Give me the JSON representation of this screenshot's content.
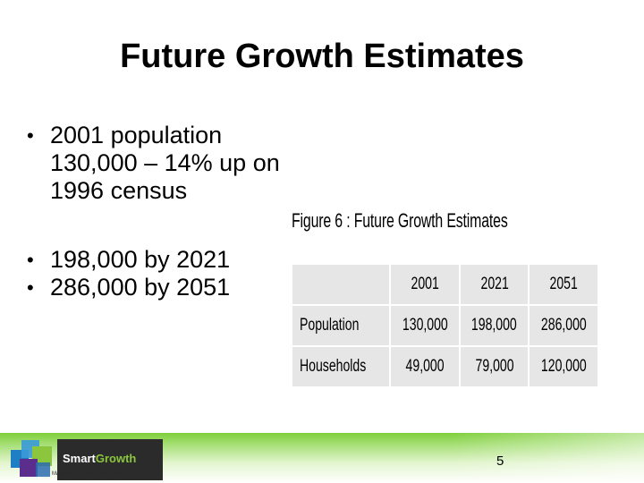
{
  "slide": {
    "title": "Future Growth Estimates",
    "bullets": [
      "2001 population 130,000 – 14% up on 1996 census",
      "198,000 by 2021",
      "286,000 by 2051"
    ],
    "bullet_symbol": "•",
    "figure_caption": "Figure 6 : Future Growth Estimates",
    "table": {
      "header": [
        "",
        "2001",
        "2021",
        "2051"
      ],
      "rows": [
        {
          "label": "Population",
          "values": [
            "130,000",
            "198,000",
            "286,000"
          ]
        },
        {
          "label": "Households",
          "values": [
            "49,000",
            "79,000",
            "120,000"
          ]
        }
      ]
    },
    "page_number": "5"
  },
  "logo": {
    "name_part1": "Smart",
    "name_part2": "Growth",
    "tagline": "Managing Growth in the Western Bay"
  },
  "colors": {
    "footer_green": "#7fcf3a",
    "table_fill": "#e6e6e6",
    "cube_blue": "#1f7fc4",
    "cube_green": "#8cc63f",
    "cube_purple": "#5b2d8c"
  }
}
